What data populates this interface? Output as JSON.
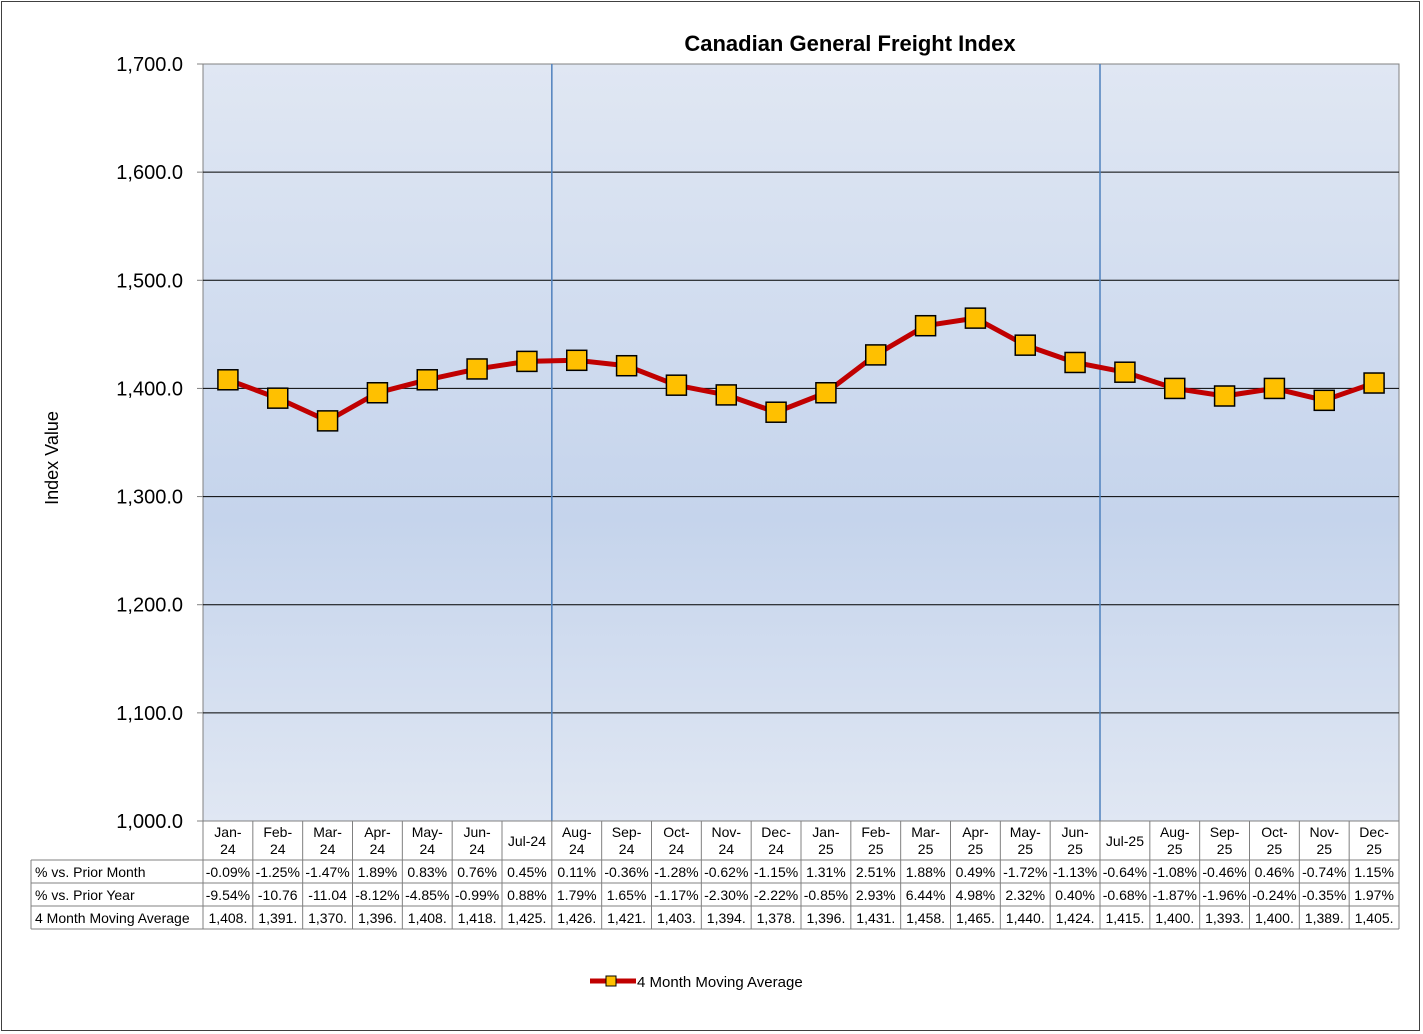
{
  "chart_data": {
    "type": "line",
    "title": "Canadian General Freight Index",
    "ylabel": "Index Value",
    "xlabel": "",
    "ylim": [
      1000,
      1700
    ],
    "yticks": [
      "1,000.0",
      "1,100.0",
      "1,200.0",
      "1,300.0",
      "1,400.0",
      "1,500.0",
      "1,600.0",
      "1,700.0"
    ],
    "grid": true,
    "legend_position": "bottom",
    "categories": [
      [
        "Jan-",
        "24"
      ],
      [
        "Feb-",
        "24"
      ],
      [
        "Mar-",
        "24"
      ],
      [
        "Apr-",
        "24"
      ],
      [
        "May-",
        "24"
      ],
      [
        "Jun-",
        "24"
      ],
      [
        "Jul-24"
      ],
      [
        "Aug-",
        "24"
      ],
      [
        "Sep-",
        "24"
      ],
      [
        "Oct-",
        "24"
      ],
      [
        "Nov-",
        "24"
      ],
      [
        "Dec-",
        "24"
      ],
      [
        "Jan-",
        "25"
      ],
      [
        "Feb-",
        "25"
      ],
      [
        "Mar-",
        "25"
      ],
      [
        "Apr-",
        "25"
      ],
      [
        "May-",
        "25"
      ],
      [
        "Jun-",
        "25"
      ],
      [
        "Jul-25"
      ],
      [
        "Aug-",
        "25"
      ],
      [
        "Sep-",
        "25"
      ],
      [
        "Oct-",
        "25"
      ],
      [
        "Nov-",
        "25"
      ],
      [
        "Dec-",
        "25"
      ]
    ],
    "series": [
      {
        "name": "4 Month Moving Average",
        "color": "#c00000",
        "marker_color": "#ffc000",
        "values": [
          1408,
          1391,
          1370,
          1396,
          1408,
          1418,
          1425,
          1426,
          1421,
          1403,
          1394,
          1378,
          1396,
          1431,
          1458,
          1465,
          1440,
          1424,
          1415,
          1400,
          1393,
          1400,
          1389,
          1405
        ]
      }
    ],
    "vertical_lines_after": [
      "Jul-24",
      "Jun-25"
    ],
    "table": {
      "rows": [
        {
          "label": "% vs. Prior Month",
          "cells": [
            "-0.09%",
            "-1.25%",
            "-1.47%",
            "1.89%",
            "0.83%",
            "0.76%",
            "0.45%",
            "0.11%",
            "-0.36%",
            "-1.28%",
            "-0.62%",
            "-1.15%",
            "1.31%",
            "2.51%",
            "1.88%",
            "0.49%",
            "-1.72%",
            "-1.13%",
            "-0.64%",
            "-1.08%",
            "-0.46%",
            "0.46%",
            "-0.74%",
            "1.15%"
          ]
        },
        {
          "label": "% vs. Prior Year",
          "cells": [
            "-9.54%",
            "-10.76",
            "-11.04",
            "-8.12%",
            "-4.85%",
            "-0.99%",
            "0.88%",
            "1.79%",
            "1.65%",
            "-1.17%",
            "-2.30%",
            "-2.22%",
            "-0.85%",
            "2.93%",
            "6.44%",
            "4.98%",
            "2.32%",
            "0.40%",
            "-0.68%",
            "-1.87%",
            "-1.96%",
            "-0.24%",
            "-0.35%",
            "1.97%"
          ]
        },
        {
          "label": "4 Month Moving Average",
          "cells": [
            "1,408.",
            "1,391.",
            "1,370.",
            "1,396.",
            "1,408.",
            "1,418.",
            "1,425.",
            "1,426.",
            "1,421.",
            "1,403.",
            "1,394.",
            "1,378.",
            "1,396.",
            "1,431.",
            "1,458.",
            "1,465.",
            "1,440.",
            "1,424.",
            "1,415.",
            "1,400.",
            "1,393.",
            "1,400.",
            "1,389.",
            "1,405."
          ]
        }
      ]
    },
    "colors": {
      "plot_top": "#e0e7f3",
      "plot_bottom": "#c5d4ec",
      "vline": "#4f81bd",
      "gridline": "#000000"
    }
  }
}
